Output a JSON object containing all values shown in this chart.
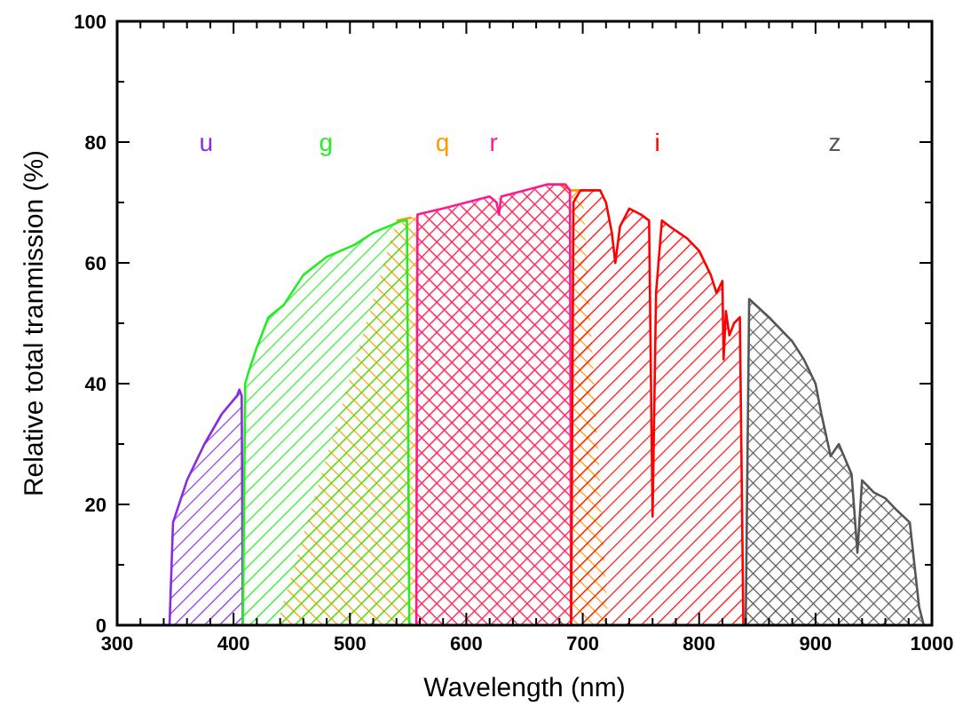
{
  "chart_data": {
    "type": "area",
    "xlabel": "Wavelength (nm)",
    "ylabel": "Relative total tranmission (%)",
    "xlim": [
      300,
      1000
    ],
    "ylim": [
      0,
      100
    ],
    "xticks": [
      300,
      {
        "value": 320,
        "label": null
      },
      {
        "value": 340,
        "label": null
      },
      {
        "value": 360,
        "label": null
      },
      {
        "value": 380,
        "label": null
      },
      400,
      {
        "value": 420,
        "label": null
      },
      {
        "value": 440,
        "label": null
      },
      {
        "value": 460,
        "label": null
      },
      {
        "value": 480,
        "label": null
      },
      500,
      {
        "value": 520,
        "label": null
      },
      {
        "value": 540,
        "label": null
      },
      {
        "value": 560,
        "label": null
      },
      {
        "value": 580,
        "label": null
      },
      600,
      {
        "value": 620,
        "label": null
      },
      {
        "value": 640,
        "label": null
      },
      {
        "value": 660,
        "label": null
      },
      {
        "value": 680,
        "label": null
      },
      700,
      {
        "value": 720,
        "label": null
      },
      {
        "value": 740,
        "label": null
      },
      {
        "value": 760,
        "label": null
      },
      {
        "value": 780,
        "label": null
      },
      800,
      {
        "value": 820,
        "label": null
      },
      {
        "value": 840,
        "label": null
      },
      {
        "value": 860,
        "label": null
      },
      {
        "value": 880,
        "label": null
      },
      900,
      {
        "value": 920,
        "label": null
      },
      {
        "value": 940,
        "label": null
      },
      {
        "value": 960,
        "label": null
      },
      {
        "value": 980,
        "label": null
      },
      1000
    ],
    "yticks": [
      0,
      {
        "value": 10,
        "label": null
      },
      20,
      {
        "value": 30,
        "label": null
      },
      40,
      {
        "value": 50,
        "label": null
      },
      60,
      {
        "value": 70,
        "label": null
      },
      80,
      {
        "value": 90,
        "label": null
      },
      100
    ],
    "grid": false,
    "series": [
      {
        "name": "u",
        "color": "#8a2be2",
        "x": [
          345,
          348,
          360,
          375,
          390,
          403,
          405,
          407,
          408
        ],
        "values": [
          0,
          17,
          24,
          30,
          35,
          38,
          39,
          38,
          0
        ]
      },
      {
        "name": "q",
        "color": "#ff9900",
        "x": [
          437,
          438,
          460,
          480,
          500,
          520,
          540,
          553,
          560,
          600,
          650,
          680,
          690,
          700,
          715,
          721,
          722
        ],
        "values": [
          0,
          null,
          null,
          null,
          null,
          null,
          67,
          67.5,
          null,
          null,
          null,
          73,
          72,
          72,
          null,
          null,
          0
        ]
      },
      {
        "name": "g",
        "color": "#22ee22",
        "x": [
          408,
          410,
          413,
          420,
          430,
          443,
          460,
          480,
          504,
          520,
          545,
          549,
          551
        ],
        "values": [
          0,
          40,
          42,
          46,
          51,
          53,
          58,
          61,
          63,
          65,
          67,
          67,
          0
        ]
      },
      {
        "name": "r",
        "color": "#ff1a8c",
        "x": [
          557,
          558,
          580,
          600,
          620,
          626,
          628,
          630,
          650,
          670,
          685,
          689,
          690
        ],
        "values": [
          0,
          68,
          69,
          70,
          71,
          70,
          68,
          71,
          72,
          73,
          73,
          72,
          0
        ]
      },
      {
        "name": "i",
        "color": "#ff0000",
        "x": [
          690,
          692,
          698,
          715,
          720,
          725,
          728,
          732,
          740,
          750,
          757,
          760,
          763,
          768,
          775,
          790,
          800,
          810,
          815,
          820,
          821,
          823,
          826,
          830,
          835,
          838
        ],
        "values": [
          0,
          70,
          72,
          72,
          70,
          65,
          60,
          66,
          69,
          68,
          67,
          18,
          55,
          67,
          66,
          64,
          62,
          58,
          55,
          57,
          44,
          52,
          48,
          50,
          51,
          0
        ]
      },
      {
        "name": "z",
        "color": "#555555",
        "x": [
          840,
          843,
          860,
          880,
          890,
          900,
          905,
          913,
          920,
          931,
          936,
          940,
          950,
          960,
          970,
          981,
          989,
          993
        ],
        "values": [
          0,
          54,
          51,
          47,
          44,
          40,
          35,
          28,
          30,
          25,
          12,
          24,
          22,
          21,
          19,
          17,
          3,
          0
        ]
      }
    ]
  }
}
